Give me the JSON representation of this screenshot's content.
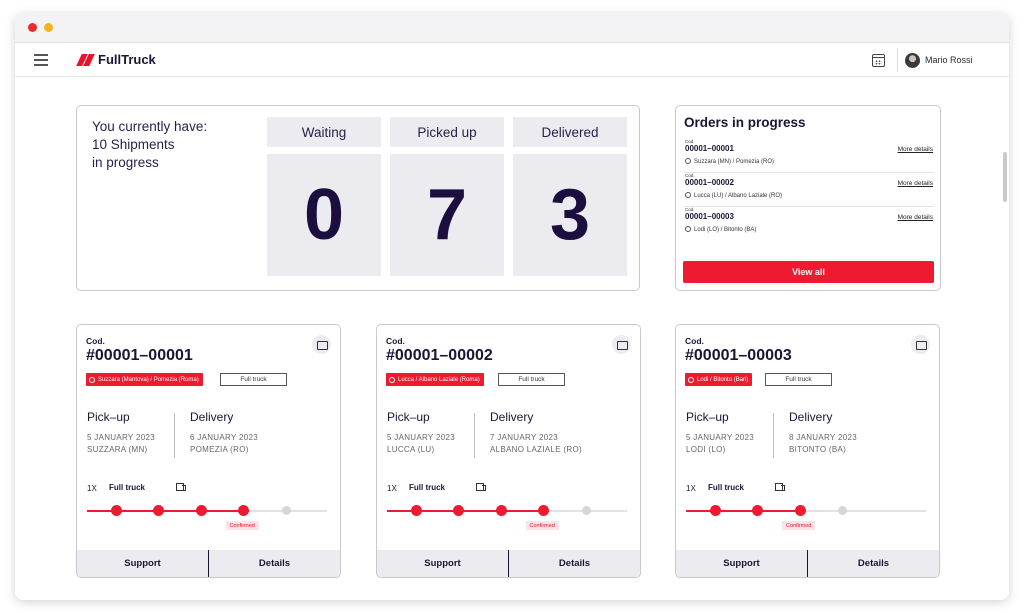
{
  "app": {
    "name": "FullTruck",
    "user": "Mario Rossi"
  },
  "summary": {
    "line1": "You currently have:",
    "line2": "10 Shipments",
    "line3": "in progress",
    "stats": [
      {
        "label": "Waiting",
        "value": "0"
      },
      {
        "label": "Picked up",
        "value": "7"
      },
      {
        "label": "Delivered",
        "value": "3"
      }
    ]
  },
  "orders": {
    "title": "Orders in progress",
    "view_all": "View all",
    "items": [
      {
        "cod": "Cod.",
        "num": "00001–00001",
        "route": "Suzzara (MN) / Pomezia (RO)",
        "more": "More details"
      },
      {
        "cod": "Cod.",
        "num": "00001–00002",
        "route": "Lucca (LU) / Albano Laziale (RO)",
        "more": "More details"
      },
      {
        "cod": "Cod.",
        "num": "00001–00003",
        "route": "Lodi (LO) / Bitonto (BA)",
        "more": "More details"
      }
    ]
  },
  "shipments": [
    {
      "cod": "Cod.",
      "num": "#00001–00001",
      "route": "Suzzara (Mantova) / Pomezia (Roma)",
      "type": "Full truck",
      "pickup_label": "Pick–up",
      "pickup_date": "5 JANUARY 2023",
      "pickup_place": "SUZZARA (MN)",
      "delivery_label": "Delivery",
      "delivery_date": "6 JANUARY 2023",
      "delivery_place": "POMEZIA (RO)",
      "qty": "1X",
      "truck_type": "Full truck",
      "steps_done": 4,
      "steps_total": 5,
      "status": "Confirmed",
      "support": "Support",
      "details": "Details"
    },
    {
      "cod": "Cod.",
      "num": "#00001–00002",
      "route": "Lucca / Albano Laziale (Roma)",
      "type": "Full truck",
      "pickup_label": "Pick–up",
      "pickup_date": "5 JANUARY 2023",
      "pickup_place": "LUCCA (LU)",
      "delivery_label": "Delivery",
      "delivery_date": "7 JANUARY 2023",
      "delivery_place": "ALBANO LAZIALE (RO)",
      "qty": "1X",
      "truck_type": "Full truck",
      "steps_done": 4,
      "steps_total": 5,
      "status": "Confirmed",
      "support": "Support",
      "details": "Details"
    },
    {
      "cod": "Cod.",
      "num": "#00001–00003",
      "route": "Lodi / Bitonto (Bari)",
      "type": "Full truck",
      "pickup_label": "Pick–up",
      "pickup_date": "5 JANUARY 2023",
      "pickup_place": "LODI (LO)",
      "delivery_label": "Delivery",
      "delivery_date": "8 JANUARY 2023",
      "delivery_place": "BITONTO (BA)",
      "qty": "1X",
      "truck_type": "Full truck",
      "steps_done": 3,
      "steps_total": 5,
      "status": "Confirmed",
      "support": "Support",
      "details": "Details"
    }
  ]
}
